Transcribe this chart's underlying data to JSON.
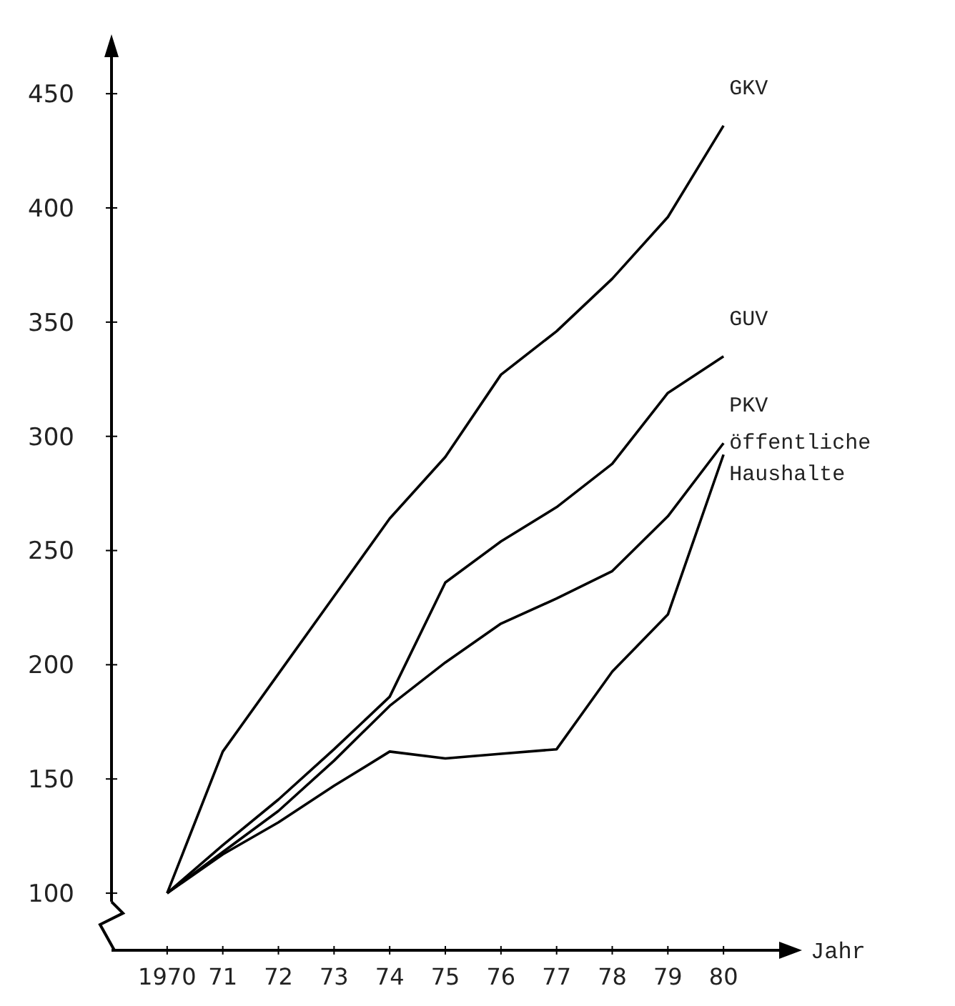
{
  "chart_data": {
    "type": "line",
    "xlabel": "Jahr",
    "x": [
      1970,
      1971,
      1972,
      1973,
      1974,
      1975,
      1976,
      1977,
      1978,
      1979,
      1980
    ],
    "xlim": [
      1969,
      1981
    ],
    "xticks": [
      {
        "value": 1970,
        "label": "1970"
      },
      {
        "value": 1971,
        "label": "71"
      },
      {
        "value": 1972,
        "label": "72"
      },
      {
        "value": 1973,
        "label": "73"
      },
      {
        "value": 1974,
        "label": "74"
      },
      {
        "value": 1975,
        "label": "75"
      },
      {
        "value": 1976,
        "label": "76"
      },
      {
        "value": 1977,
        "label": "77"
      },
      {
        "value": 1978,
        "label": "78"
      },
      {
        "value": 1979,
        "label": "79"
      },
      {
        "value": 1980,
        "label": "80"
      }
    ],
    "ylim": [
      75,
      466
    ],
    "yticks": [
      100,
      150,
      200,
      250,
      300,
      350,
      400,
      450
    ],
    "grid": false,
    "marker": "none",
    "line_style": "solid",
    "series": [
      {
        "name": "GKV",
        "color": "#000000",
        "values": [
          100,
          162,
          196,
          230,
          264,
          291,
          327,
          346,
          369,
          396,
          436
        ]
      },
      {
        "name": "GUV",
        "color": "#000000",
        "values": [
          100,
          121,
          141,
          163,
          186,
          236,
          254,
          269,
          288,
          319,
          335
        ]
      },
      {
        "name": "PKV",
        "color": "#000000",
        "values": [
          100,
          118,
          136,
          158,
          182,
          201,
          218,
          229,
          241,
          265,
          297
        ]
      },
      {
        "name": "öffentliche Haushalte",
        "color": "#000000",
        "values": [
          100,
          117,
          131,
          147,
          162,
          159,
          161,
          163,
          197,
          222,
          292
        ]
      }
    ]
  }
}
